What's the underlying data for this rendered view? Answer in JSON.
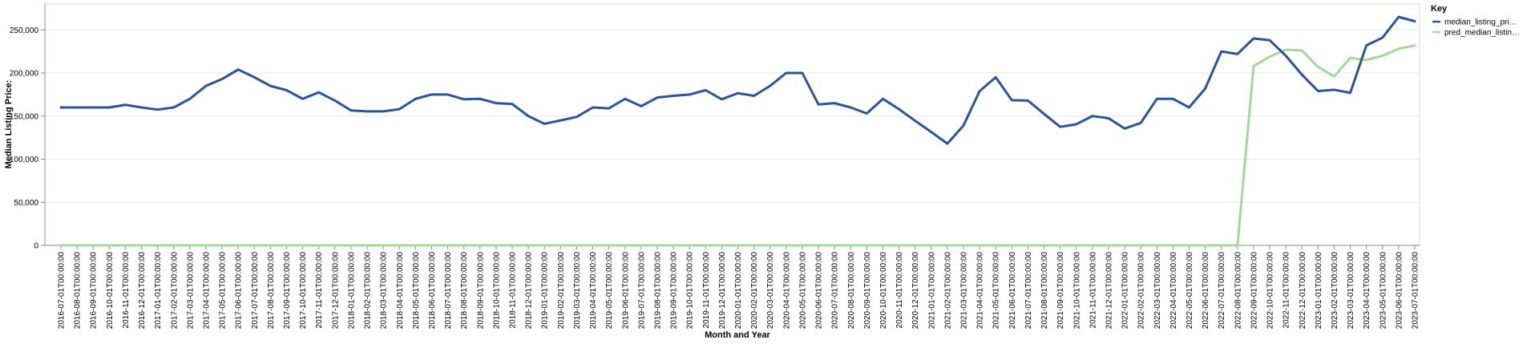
{
  "chart_data": {
    "type": "line",
    "xlabel": "Month and Year",
    "ylabel": "Median Listing Price:",
    "ylim": [
      0,
      280000
    ],
    "yticks": [
      0,
      50000,
      100000,
      150000,
      200000,
      250000
    ],
    "ytick_labels": [
      "0",
      "50,000",
      "100,000",
      "150,000",
      "200,000",
      "250,000"
    ],
    "grid": true,
    "legend": {
      "title": "Key",
      "placement": "top-right"
    },
    "x": [
      "2016-07-01T00:00:00",
      "2016-08-01T00:00:00",
      "2016-09-01T00:00:00",
      "2016-10-01T00:00:00",
      "2016-11-01T00:00:00",
      "2016-12-01T00:00:00",
      "2017-01-01T00:00:00",
      "2017-02-01T00:00:00",
      "2017-03-01T00:00:00",
      "2017-04-01T00:00:00",
      "2017-05-01T00:00:00",
      "2017-06-01T00:00:00",
      "2017-07-01T00:00:00",
      "2017-08-01T00:00:00",
      "2017-09-01T00:00:00",
      "2017-10-01T00:00:00",
      "2017-11-01T00:00:00",
      "2017-12-01T00:00:00",
      "2018-01-01T00:00:00",
      "2018-02-01T00:00:00",
      "2018-03-01T00:00:00",
      "2018-04-01T00:00:00",
      "2018-05-01T00:00:00",
      "2018-06-01T00:00:00",
      "2018-07-01T00:00:00",
      "2018-08-01T00:00:00",
      "2018-09-01T00:00:00",
      "2018-10-01T00:00:00",
      "2018-11-01T00:00:00",
      "2018-12-01T00:00:00",
      "2019-01-01T00:00:00",
      "2019-02-01T00:00:00",
      "2019-03-01T00:00:00",
      "2019-04-01T00:00:00",
      "2019-05-01T00:00:00",
      "2019-06-01T00:00:00",
      "2019-07-01T00:00:00",
      "2019-08-01T00:00:00",
      "2019-09-01T00:00:00",
      "2019-10-01T00:00:00",
      "2019-11-01T00:00:00",
      "2019-12-01T00:00:00",
      "2020-01-01T00:00:00",
      "2020-02-01T00:00:00",
      "2020-03-01T00:00:00",
      "2020-04-01T00:00:00",
      "2020-05-01T00:00:00",
      "2020-06-01T00:00:00",
      "2020-07-01T00:00:00",
      "2020-08-01T00:00:00",
      "2020-09-01T00:00:00",
      "2020-10-01T00:00:00",
      "2020-11-01T00:00:00",
      "2020-12-01T00:00:00",
      "2021-01-01T00:00:00",
      "2021-02-01T00:00:00",
      "2021-03-01T00:00:00",
      "2021-04-01T00:00:00",
      "2021-05-01T00:00:00",
      "2021-06-01T00:00:00",
      "2021-07-01T00:00:00",
      "2021-08-01T00:00:00",
      "2021-09-01T00:00:00",
      "2021-10-01T00:00:00",
      "2021-11-01T00:00:00",
      "2021-12-01T00:00:00",
      "2022-01-01T00:00:00",
      "2022-02-01T00:00:00",
      "2022-03-01T00:00:00",
      "2022-04-01T00:00:00",
      "2022-05-01T00:00:00",
      "2022-06-01T00:00:00",
      "2022-07-01T00:00:00",
      "2022-08-01T00:00:00",
      "2022-09-01T00:00:00",
      "2022-10-01T00:00:00",
      "2022-11-01T00:00:00",
      "2022-12-01T00:00:00",
      "2023-01-01T00:00:00",
      "2023-02-01T00:00:00",
      "2023-03-01T00:00:00",
      "2023-04-01T00:00:00",
      "2023-05-01T00:00:00",
      "2023-06-01T00:00:00",
      "2023-07-01T00:00:00"
    ],
    "series": [
      {
        "name": "median_listing_pri…",
        "color": "#2a5599",
        "values": [
          160000,
          160000,
          160000,
          160000,
          163000,
          160000,
          157500,
          160000,
          170000,
          185000,
          193000,
          204000,
          195000,
          185000,
          180000,
          170000,
          177500,
          168000,
          156500,
          155500,
          155500,
          158000,
          170000,
          175000,
          175000,
          169500,
          170000,
          165000,
          164000,
          150000,
          141000,
          145000,
          149000,
          160000,
          159000,
          170000,
          161500,
          171500,
          173500,
          175000,
          180000,
          169500,
          176500,
          173500,
          185000,
          200000,
          200000,
          163500,
          165000,
          160000,
          153000,
          170000,
          158000,
          144500,
          131500,
          118000,
          139000,
          179000,
          195000,
          168500,
          168000,
          152500,
          137500,
          140500,
          150000,
          147500,
          135500,
          142000,
          170000,
          170000,
          160000,
          182000,
          225000,
          222000,
          240000,
          238000,
          220000,
          198000,
          179000,
          180500,
          177000,
          232000,
          241000,
          265000,
          260000
        ]
      },
      {
        "name": "pred_median_listin…",
        "color": "#a1d99b",
        "values": [
          0,
          0,
          0,
          0,
          0,
          0,
          0,
          0,
          0,
          0,
          0,
          0,
          0,
          0,
          0,
          0,
          0,
          0,
          0,
          0,
          0,
          0,
          0,
          0,
          0,
          0,
          0,
          0,
          0,
          0,
          0,
          0,
          0,
          0,
          0,
          0,
          0,
          0,
          0,
          0,
          0,
          0,
          0,
          0,
          0,
          0,
          0,
          0,
          0,
          0,
          0,
          0,
          0,
          0,
          0,
          0,
          0,
          0,
          0,
          0,
          0,
          0,
          0,
          0,
          0,
          0,
          0,
          0,
          0,
          0,
          0,
          0,
          0,
          0,
          208000,
          219000,
          227000,
          226000,
          207000,
          196000,
          217500,
          215000,
          220000,
          228000,
          232000
        ]
      }
    ]
  }
}
